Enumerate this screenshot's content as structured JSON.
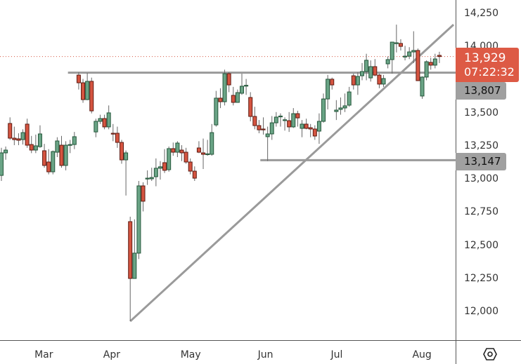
{
  "chart_data": {
    "type": "candlestick",
    "y_axis": {
      "range": [
        11788,
        14356
      ],
      "ticks": [
        14250,
        14000,
        13500,
        13250,
        13000,
        12750,
        12500,
        12250,
        12000
      ],
      "tick_labels": [
        "14,250",
        "14,000",
        "13,500",
        "13,250",
        "13,000",
        "12,750",
        "12,500",
        "12,250",
        "12,000"
      ],
      "position": "right"
    },
    "x_axis": {
      "ticks": [
        {
          "label": "Mar",
          "index": 10
        },
        {
          "label": "Apr",
          "index": 26
        },
        {
          "label": "May",
          "index": 44
        },
        {
          "label": "Jun",
          "index": 62
        },
        {
          "label": "Jul",
          "index": 79
        },
        {
          "label": "Aug",
          "index": 98
        }
      ]
    },
    "grid": false,
    "candles_ohlc": [
      [
        13032,
        13240,
        12990,
        13202
      ],
      [
        13202,
        13250,
        13150,
        13223
      ],
      [
        13424,
        13470,
        13300,
        13313
      ],
      [
        13313,
        13400,
        13260,
        13302
      ],
      [
        13308,
        13350,
        13260,
        13297
      ],
      [
        13302,
        13380,
        13265,
        13355
      ],
      [
        13419,
        13460,
        13240,
        13260
      ],
      [
        13265,
        13330,
        13200,
        13223
      ],
      [
        13223,
        13340,
        13200,
        13255
      ],
      [
        13249,
        13410,
        13240,
        13345
      ],
      [
        13218,
        13270,
        13090,
        13107
      ],
      [
        13133,
        13230,
        13040,
        13059
      ],
      [
        13059,
        13220,
        13040,
        13212
      ],
      [
        13207,
        13320,
        13170,
        13292
      ],
      [
        13260,
        13330,
        13090,
        13107
      ],
      [
        13107,
        13290,
        13070,
        13260
      ],
      [
        13265,
        13300,
        13200,
        13265
      ],
      [
        13265,
        13360,
        13230,
        13324
      ],
      [
        13789,
        13810,
        13680,
        13731
      ],
      [
        13731,
        13760,
        13580,
        13604
      ],
      [
        13604,
        13805,
        13600,
        13742
      ],
      [
        13742,
        13770,
        13500,
        13519
      ],
      [
        13360,
        13460,
        13320,
        13440
      ],
      [
        13440,
        13490,
        13420,
        13461
      ],
      [
        13461,
        13490,
        13380,
        13398
      ],
      [
        13398,
        13560,
        13380,
        13504
      ],
      [
        13350,
        13420,
        13290,
        13345
      ],
      [
        13350,
        13400,
        13240,
        13281
      ],
      [
        13281,
        13300,
        13120,
        13149
      ],
      [
        13149,
        13220,
        12880,
        13202
      ],
      [
        12683,
        12720,
        11931,
        12254
      ],
      [
        12254,
        12700,
        12254,
        12445
      ],
      [
        12445,
        12990,
        12400,
        12953
      ],
      [
        12953,
        12980,
        12760,
        12837
      ],
      [
        13006,
        13070,
        12960,
        13011
      ],
      [
        13006,
        13090,
        12990,
        13016
      ],
      [
        13022,
        13160,
        12950,
        13086
      ],
      [
        13086,
        13140,
        13000,
        13097
      ],
      [
        13128,
        13230,
        13050,
        13070
      ],
      [
        13075,
        13250,
        13060,
        13234
      ],
      [
        13234,
        13280,
        13180,
        13207
      ],
      [
        13207,
        13290,
        13170,
        13276
      ],
      [
        13223,
        13260,
        13140,
        13202
      ],
      [
        13207,
        13240,
        13120,
        13133
      ],
      [
        13133,
        13160,
        13040,
        13064
      ],
      [
        13064,
        13100,
        12990,
        13011
      ],
      [
        13239,
        13290,
        13200,
        13207
      ],
      [
        13202,
        13310,
        13080,
        13191
      ],
      [
        13191,
        13300,
        13180,
        13195
      ],
      [
        13191,
        13420,
        13180,
        13355
      ],
      [
        13413,
        13670,
        13400,
        13615
      ],
      [
        13615,
        13690,
        13540,
        13588
      ],
      [
        13588,
        13830,
        13560,
        13800
      ],
      [
        13800,
        13810,
        13660,
        13715
      ],
      [
        13636,
        13700,
        13560,
        13583
      ],
      [
        13583,
        13680,
        13580,
        13657
      ],
      [
        13652,
        13800,
        13640,
        13705
      ],
      [
        13710,
        13760,
        13640,
        13712
      ],
      [
        13620,
        13660,
        13440,
        13477
      ],
      [
        13477,
        13550,
        13380,
        13408
      ],
      [
        13408,
        13450,
        13350,
        13376
      ],
      [
        13382,
        13470,
        13340,
        13380
      ],
      [
        13324,
        13400,
        13140,
        13345
      ],
      [
        13345,
        13480,
        13300,
        13429
      ],
      [
        13429,
        13510,
        13400,
        13472
      ],
      [
        13477,
        13500,
        13400,
        13480
      ],
      [
        13451,
        13470,
        13370,
        13452
      ],
      [
        13445,
        13510,
        13360,
        13398
      ],
      [
        13398,
        13540,
        13390,
        13498
      ],
      [
        13498,
        13520,
        13400,
        13466
      ],
      [
        13387,
        13450,
        13320,
        13419
      ],
      [
        13419,
        13460,
        13380,
        13387
      ],
      [
        13392,
        13420,
        13320,
        13382
      ],
      [
        13382,
        13410,
        13300,
        13329
      ],
      [
        13366,
        13500,
        13270,
        13440
      ],
      [
        13440,
        13650,
        13430,
        13609
      ],
      [
        13609,
        13790,
        13530,
        13758
      ],
      [
        13758,
        13770,
        13680,
        13715
      ],
      [
        13514,
        13600,
        13450,
        13525
      ],
      [
        13530,
        13620,
        13490,
        13541
      ],
      [
        13541,
        13650,
        13510,
        13557
      ],
      [
        13562,
        13700,
        13550,
        13662
      ],
      [
        13784,
        13800,
        13680,
        13715
      ],
      [
        13715,
        13810,
        13640,
        13779
      ],
      [
        13784,
        13880,
        13750,
        13816
      ],
      [
        13816,
        13950,
        13750,
        13901
      ],
      [
        13768,
        13900,
        13740,
        13853
      ],
      [
        13853,
        13910,
        13780,
        13789
      ],
      [
        13789,
        13800,
        13690,
        13721
      ],
      [
        13721,
        13790,
        13700,
        13763
      ],
      [
        13874,
        13930,
        13840,
        13906
      ],
      [
        13906,
        14040,
        13800,
        14038
      ],
      [
        14033,
        14170,
        13960,
        14033
      ],
      [
        14028,
        14060,
        13975,
        14006
      ],
      [
        13932,
        14010,
        13900,
        13932
      ],
      [
        13932,
        14000,
        13910,
        13964
      ],
      [
        13964,
        14120,
        13880,
        13975
      ],
      [
        13975,
        13990,
        13747,
        13747
      ],
      [
        13631,
        13780,
        13610,
        13774
      ],
      [
        13774,
        13900,
        13750,
        13890
      ],
      [
        13885,
        13920,
        13830,
        13864
      ],
      [
        13864,
        13950,
        13840,
        13911
      ],
      [
        13938,
        13965,
        13880,
        13929
      ]
    ],
    "drawings": {
      "resistance": {
        "price": 13807,
        "from_index": 15.5
      },
      "support": {
        "price": 13147,
        "from_index": 60.3
      },
      "trendline": {
        "points": [
          [
            30,
            11931
          ],
          [
            105.3,
            14170
          ]
        ]
      }
    },
    "last_price": {
      "value": 13929,
      "label": "13,929",
      "countdown": "07:22:32"
    },
    "price_tags": [
      {
        "label": "13,807",
        "value": 13807
      },
      {
        "label": "13,147",
        "value": 13147
      }
    ],
    "colors": {
      "up": "#6aa486",
      "up_border": "#24563a",
      "down": "#d55440",
      "down_border": "#5e1b12",
      "lines": "#9a9a9a",
      "last_price": "#dd5a45"
    }
  },
  "icons": {
    "settings": "settings-hexagon-icon"
  }
}
